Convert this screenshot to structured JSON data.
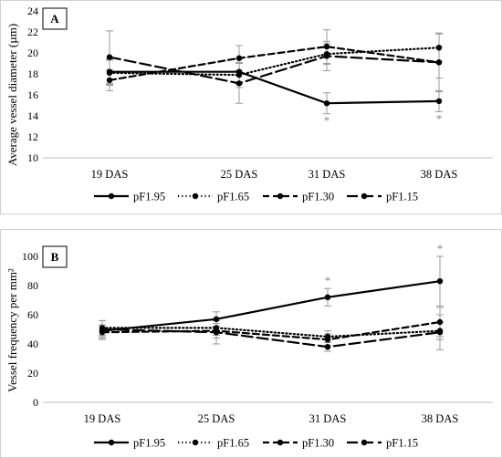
{
  "chart_data": [
    {
      "type": "line",
      "panel": "A",
      "ylabel": "Average vessel diameter (µm)",
      "categories": [
        "19 DAS",
        "25 DAS",
        "31 DAS",
        "38 DAS"
      ],
      "ylim": [
        10,
        24
      ],
      "yticks": [
        10,
        12,
        14,
        16,
        18,
        20,
        22,
        24
      ],
      "grid": false,
      "legend_position": "bottom",
      "series": [
        {
          "name": "pF1.95",
          "style": "solid",
          "values": [
            18.2,
            18.2,
            15.2,
            15.4
          ],
          "errors": [
            1.2,
            1.2,
            1.0,
            1.0
          ],
          "stars": [
            false,
            false,
            true,
            true
          ]
        },
        {
          "name": "pF1.65",
          "style": "dotted",
          "values": [
            18.1,
            17.9,
            19.9,
            20.5
          ],
          "errors": [
            1.2,
            1.2,
            1.0,
            1.3
          ],
          "stars": [
            false,
            false,
            false,
            false
          ]
        },
        {
          "name": "pF1.30",
          "style": "dashed",
          "values": [
            17.4,
            19.5,
            20.6,
            19.1
          ],
          "errors": [
            1.0,
            1.2,
            1.6,
            2.8
          ],
          "stars": [
            false,
            false,
            false,
            false
          ]
        },
        {
          "name": "pF1.15",
          "style": "longdash",
          "values": [
            19.6,
            17.1,
            19.7,
            19.1
          ],
          "errors": [
            2.5,
            1.9,
            1.4,
            1.5
          ],
          "stars": [
            false,
            false,
            false,
            false
          ]
        }
      ]
    },
    {
      "type": "line",
      "panel": "B",
      "ylabel": "Vessel  frequency per mm²",
      "categories": [
        "19 DAS",
        "25 DAS",
        "31 DAS",
        "38 DAS"
      ],
      "ylim": [
        0,
        100
      ],
      "yticks": [
        0,
        20,
        40,
        60,
        80,
        100
      ],
      "grid": false,
      "legend_position": "bottom",
      "series": [
        {
          "name": "pF1.95",
          "style": "solid",
          "values": [
            49,
            57,
            72,
            83
          ],
          "errors": [
            4,
            5,
            6,
            17
          ],
          "stars": [
            false,
            false,
            true,
            true
          ]
        },
        {
          "name": "pF1.65",
          "style": "dotted",
          "values": [
            51,
            51,
            45,
            49
          ],
          "errors": [
            5,
            5,
            4,
            6
          ],
          "stars": [
            false,
            false,
            false,
            false
          ]
        },
        {
          "name": "pF1.30",
          "style": "dashed",
          "values": [
            48,
            49,
            43,
            55
          ],
          "errors": [
            5,
            5,
            4,
            10
          ],
          "stars": [
            false,
            false,
            false,
            false
          ]
        },
        {
          "name": "pF1.15",
          "style": "longdash",
          "values": [
            50,
            48,
            38,
            48
          ],
          "errors": [
            6,
            8,
            3,
            12
          ],
          "stars": [
            false,
            false,
            false,
            false
          ]
        }
      ]
    }
  ],
  "significance_mark": "*"
}
